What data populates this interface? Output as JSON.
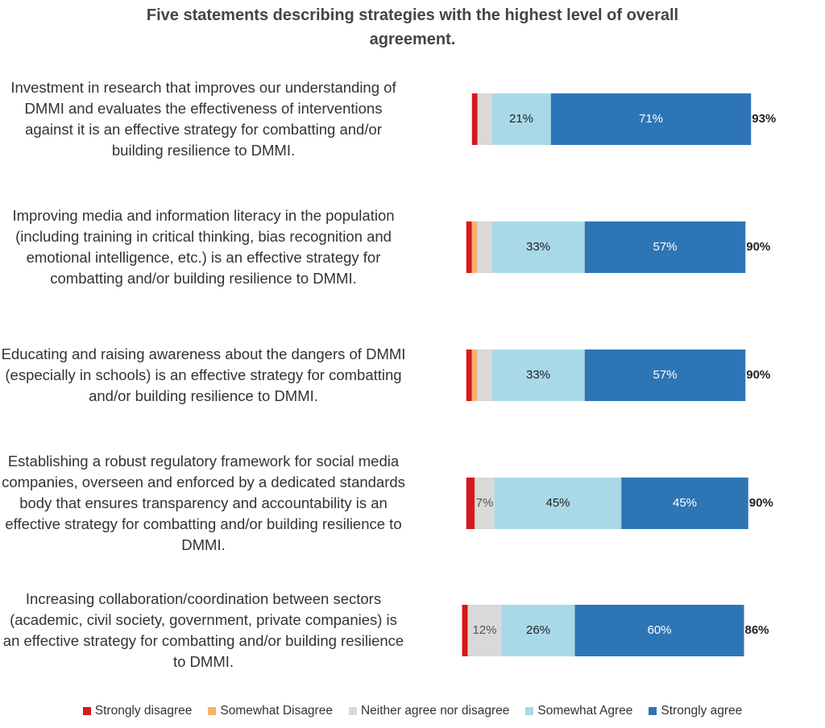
{
  "chart_data": {
    "type": "diverging_bar",
    "title": "Five statements describing strategies with the highest level of overall agreement.",
    "categories": [
      "Investment in research that improves our understanding of DMMI and evaluates the effectiveness of interventions against it is an effective strategy for combatting and/or building resilience to DMMI.",
      "Improving media and information literacy in the population (including training in critical thinking, bias recognition and emotional intelligence, etc.) is an effective strategy for combatting and/or building resilience to DMMI.",
      "Educating and raising awareness about the dangers of DMMI (especially in schools) is an effective strategy for combatting and/or building resilience to DMMI.",
      "Establishing a robust regulatory framework for social media companies, overseen and enforced by a dedicated standards body that ensures transparency and accountability is an effective strategy for combatting and/or building resilience to DMMI.",
      "Increasing collaboration/coordination between sectors (academic, civil society, government, private companies) is an effective strategy for combatting and/or building resilience to DMMI."
    ],
    "series": [
      {
        "name": "Strongly disagree",
        "color": "#d7191c",
        "values": [
          2,
          2,
          2,
          3,
          2
        ]
      },
      {
        "name": "Somewhat Disagree",
        "color": "#f5b26b",
        "values": [
          0,
          2,
          2,
          0,
          0
        ]
      },
      {
        "name": "Neither agree nor disagree",
        "color": "#d9d9d9",
        "values": [
          5,
          5,
          5,
          7,
          12
        ],
        "value_labels": [
          null,
          null,
          null,
          "7%",
          "12%"
        ]
      },
      {
        "name": "Somewhat Agree",
        "color": "#a9d9e8",
        "values": [
          21,
          33,
          33,
          45,
          26
        ],
        "value_labels": [
          "21%",
          "33%",
          "33%",
          "45%",
          "26%"
        ]
      },
      {
        "name": "Strongly agree",
        "color": "#2e75b6",
        "values": [
          71,
          57,
          57,
          45,
          60
        ],
        "value_labels": [
          "71%",
          "57%",
          "57%",
          "45%",
          "60%"
        ]
      }
    ],
    "totals": [
      {
        "value": 93,
        "label": "93%"
      },
      {
        "value": 90,
        "label": "90%"
      },
      {
        "value": 90,
        "label": "90%"
      },
      {
        "value": 90,
        "label": "90%"
      },
      {
        "value": 86,
        "label": "86%"
      }
    ],
    "neutral_series": 2,
    "legend": "bottom"
  }
}
